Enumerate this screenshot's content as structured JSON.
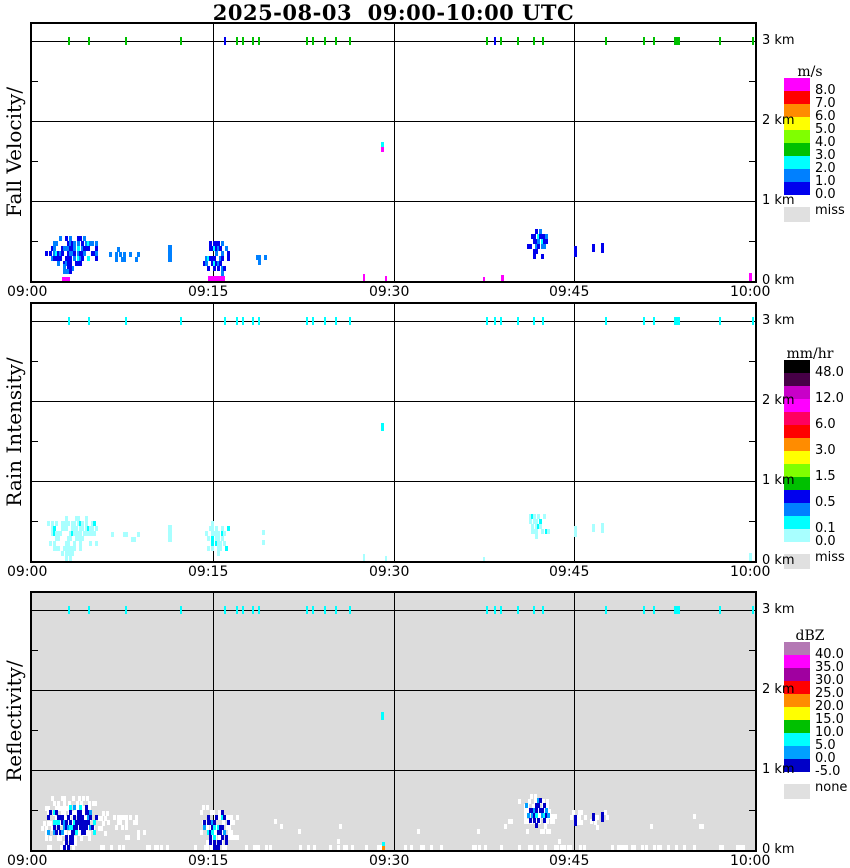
{
  "title": "2025-08-03  09:00-10:00 UTC",
  "chart_data": {
    "type": "heatmap",
    "title": "2025-08-03  09:00-10:00 UTC",
    "x_axis": {
      "tick_labels": [
        "09:00",
        "09:15",
        "09:30",
        "09:45",
        "10:00"
      ],
      "tick_minutes": [
        0,
        15,
        30,
        45,
        60
      ],
      "gridline_minutes": [
        15,
        30,
        45
      ],
      "range_minutes": [
        0,
        60
      ]
    },
    "y_axis": {
      "unit": "km",
      "tick_labels": [
        "0 km",
        "1 km",
        "2 km",
        "3 km"
      ],
      "tick_km": [
        0,
        1,
        2,
        3
      ],
      "gridline_km": [
        1,
        2,
        3
      ],
      "minor_tick_km": [
        0.5,
        1.5,
        2.5
      ],
      "range_km": [
        0,
        3.2
      ]
    },
    "shared_top_ticks": {
      "height_km": 3.0,
      "times_minutes": [
        3.1,
        4.7,
        7.8,
        12.4,
        16.0,
        17.0,
        17.5,
        18.3,
        18.8,
        22.8,
        23.3,
        24.3,
        25.2,
        26.4,
        37.8,
        38.4,
        38.9,
        40.3,
        41.7,
        42.4,
        47.6,
        50.8,
        51.6,
        53.5,
        57.1,
        59.8
      ],
      "wide_times": [
        53.5
      ]
    },
    "panels": [
      {
        "id": "fall-velocity",
        "label": "Fall Velocity/",
        "units": "m/s",
        "background": "#FFFFFF",
        "tick_color": "#00C000",
        "tick_overrides": [
          {
            "t": 16.0,
            "color": "#0000EE"
          },
          {
            "t": 38.4,
            "color": "#0000EE"
          }
        ],
        "features": [
          {
            "kind": "cluster",
            "t0": 1.2,
            "t1": 5.4,
            "h0": 0.13,
            "h1": 0.52,
            "density": 0.62,
            "seed": 11,
            "colors": [
              [
                "#0000EE",
                55
              ],
              [
                "#0080FF",
                38
              ],
              [
                "#00FFFF",
                7
              ]
            ]
          },
          {
            "kind": "cluster",
            "t0": 2.5,
            "t1": 3.4,
            "h0": 0.02,
            "h1": 0.16,
            "density": 0.7,
            "seed": 12,
            "colors": [
              [
                "#0000EE",
                60
              ],
              [
                "#0080FF",
                40
              ]
            ]
          },
          {
            "kind": "rect",
            "t0": 2.5,
            "t1": 3.2,
            "h0": 0.0,
            "h1": 0.05,
            "color": "#FF00FF"
          },
          {
            "kind": "cluster",
            "t0": 6.5,
            "t1": 9.0,
            "h0": 0.18,
            "h1": 0.38,
            "density": 0.16,
            "seed": 13,
            "colors": [
              [
                "#0080FF",
                100
              ]
            ]
          },
          {
            "kind": "rect",
            "t0": 11.3,
            "t1": 11.6,
            "h0": 0.24,
            "h1": 0.45,
            "color": "#0080FF"
          },
          {
            "kind": "cluster",
            "t0": 14.3,
            "t1": 16.4,
            "h0": 0.06,
            "h1": 0.46,
            "density": 0.6,
            "seed": 14,
            "colors": [
              [
                "#0000EE",
                55
              ],
              [
                "#0080FF",
                38
              ],
              [
                "#00FFFF",
                7
              ]
            ]
          },
          {
            "kind": "rect",
            "t0": 14.6,
            "t1": 16.0,
            "h0": 0.0,
            "h1": 0.06,
            "color": "#FF00FF"
          },
          {
            "kind": "cluster",
            "t0": 18.5,
            "t1": 19.6,
            "h0": 0.2,
            "h1": 0.33,
            "density": 0.22,
            "seed": 15,
            "colors": [
              [
                "#0080FF",
                100
              ]
            ]
          },
          {
            "kind": "rect",
            "t0": 29.0,
            "t1": 29.25,
            "h0": 1.68,
            "h1": 1.74,
            "color": "#00FFFF"
          },
          {
            "kind": "rect",
            "t0": 29.0,
            "t1": 29.25,
            "h0": 1.62,
            "h1": 1.68,
            "color": "#FF00FF"
          },
          {
            "kind": "rect",
            "t0": 27.5,
            "t1": 27.7,
            "h0": 0.0,
            "h1": 0.09,
            "color": "#FF00FF"
          },
          {
            "kind": "rect",
            "t0": 29.3,
            "t1": 29.5,
            "h0": 0.0,
            "h1": 0.06,
            "color": "#FF00FF"
          },
          {
            "kind": "rect",
            "t0": 37.4,
            "t1": 37.6,
            "h0": 0.0,
            "h1": 0.05,
            "color": "#FF00FF"
          },
          {
            "kind": "rect",
            "t0": 38.9,
            "t1": 39.15,
            "h0": 0.0,
            "h1": 0.07,
            "color": "#FF00FF"
          },
          {
            "kind": "rect",
            "t0": 59.5,
            "t1": 59.75,
            "h0": 0.0,
            "h1": 0.1,
            "color": "#FF00FF"
          },
          {
            "kind": "cluster",
            "t0": 41.0,
            "t1": 42.9,
            "h0": 0.28,
            "h1": 0.6,
            "density": 0.58,
            "seed": 16,
            "colors": [
              [
                "#0000EE",
                55
              ],
              [
                "#0080FF",
                40
              ],
              [
                "#00FFFF",
                5
              ]
            ]
          },
          {
            "kind": "rect",
            "t0": 45.0,
            "t1": 45.25,
            "h0": 0.3,
            "h1": 0.44,
            "color": "#0000EE"
          },
          {
            "kind": "rect",
            "t0": 46.5,
            "t1": 46.75,
            "h0": 0.36,
            "h1": 0.46,
            "color": "#0000EE"
          },
          {
            "kind": "rect",
            "t0": 47.2,
            "t1": 47.45,
            "h0": 0.34,
            "h1": 0.47,
            "color": "#0000EE"
          }
        ]
      },
      {
        "id": "rain-intensity",
        "label": "Rain Intensity/",
        "units": "mm/hr",
        "background": "#FFFFFF",
        "tick_color": "#00FFFF",
        "tick_overrides": [],
        "features": [
          {
            "kind": "cluster",
            "t0": 1.2,
            "t1": 5.4,
            "h0": 0.13,
            "h1": 0.52,
            "density": 0.62,
            "seed": 21,
            "colors": [
              [
                "#A8FFFF",
                88
              ],
              [
                "#00FFFF",
                12
              ]
            ]
          },
          {
            "kind": "cluster",
            "t0": 2.5,
            "t1": 3.4,
            "h0": 0.0,
            "h1": 0.16,
            "density": 0.7,
            "seed": 22,
            "colors": [
              [
                "#A8FFFF",
                100
              ]
            ]
          },
          {
            "kind": "cluster",
            "t0": 6.5,
            "t1": 9.0,
            "h0": 0.18,
            "h1": 0.38,
            "density": 0.16,
            "seed": 23,
            "colors": [
              [
                "#A8FFFF",
                100
              ]
            ]
          },
          {
            "kind": "rect",
            "t0": 11.3,
            "t1": 11.6,
            "h0": 0.24,
            "h1": 0.45,
            "color": "#A8FFFF"
          },
          {
            "kind": "cluster",
            "t0": 14.3,
            "t1": 16.4,
            "h0": 0.0,
            "h1": 0.46,
            "density": 0.6,
            "seed": 24,
            "colors": [
              [
                "#A8FFFF",
                90
              ],
              [
                "#00FFFF",
                10
              ]
            ]
          },
          {
            "kind": "cluster",
            "t0": 18.5,
            "t1": 19.6,
            "h0": 0.2,
            "h1": 0.33,
            "density": 0.22,
            "seed": 25,
            "colors": [
              [
                "#A8FFFF",
                100
              ]
            ]
          },
          {
            "kind": "rect",
            "t0": 29.0,
            "t1": 29.25,
            "h0": 1.62,
            "h1": 1.72,
            "color": "#00FFFF"
          },
          {
            "kind": "rect",
            "t0": 27.5,
            "t1": 27.7,
            "h0": 0.0,
            "h1": 0.09,
            "color": "#A8FFFF"
          },
          {
            "kind": "rect",
            "t0": 29.3,
            "t1": 29.5,
            "h0": 0.0,
            "h1": 0.06,
            "color": "#A8FFFF"
          },
          {
            "kind": "rect",
            "t0": 37.4,
            "t1": 37.6,
            "h0": 0.0,
            "h1": 0.05,
            "color": "#A8FFFF"
          },
          {
            "kind": "rect",
            "t0": 59.5,
            "t1": 59.75,
            "h0": 0.0,
            "h1": 0.1,
            "color": "#A8FFFF"
          },
          {
            "kind": "cluster",
            "t0": 41.0,
            "t1": 42.9,
            "h0": 0.28,
            "h1": 0.6,
            "density": 0.58,
            "seed": 26,
            "colors": [
              [
                "#A8FFFF",
                85
              ],
              [
                "#00FFFF",
                15
              ]
            ]
          },
          {
            "kind": "rect",
            "t0": 45.0,
            "t1": 45.25,
            "h0": 0.3,
            "h1": 0.44,
            "color": "#A8FFFF"
          },
          {
            "kind": "rect",
            "t0": 46.5,
            "t1": 46.75,
            "h0": 0.36,
            "h1": 0.46,
            "color": "#A8FFFF"
          },
          {
            "kind": "rect",
            "t0": 47.2,
            "t1": 47.45,
            "h0": 0.34,
            "h1": 0.47,
            "color": "#A8FFFF"
          }
        ]
      },
      {
        "id": "reflectivity",
        "label": "Reflectivity/",
        "units": "dBZ",
        "background": "#DCDCDC",
        "tick_color": "#00FFFF",
        "tick_overrides": [],
        "features": [
          {
            "kind": "cluster",
            "t0": 0.8,
            "t1": 6.3,
            "h0": 0.05,
            "h1": 0.62,
            "density": 0.5,
            "seed": 31,
            "colors": [
              [
                "#FFFFFF",
                100
              ]
            ]
          },
          {
            "kind": "cluster",
            "t0": 6.3,
            "t1": 9.6,
            "h0": 0.12,
            "h1": 0.42,
            "density": 0.3,
            "seed": 32,
            "colors": [
              [
                "#FFFFFF",
                100
              ]
            ]
          },
          {
            "kind": "cluster",
            "t0": 13.7,
            "t1": 17.2,
            "h0": 0.0,
            "h1": 0.52,
            "density": 0.45,
            "seed": 33,
            "colors": [
              [
                "#FFFFFF",
                100
              ]
            ]
          },
          {
            "kind": "cluster",
            "t0": 40.4,
            "t1": 43.4,
            "h0": 0.2,
            "h1": 0.66,
            "density": 0.45,
            "seed": 34,
            "colors": [
              [
                "#FFFFFF",
                100
              ]
            ]
          },
          {
            "kind": "cluster",
            "t0": 44.4,
            "t1": 48.0,
            "h0": 0.25,
            "h1": 0.5,
            "density": 0.25,
            "seed": 35,
            "colors": [
              [
                "#FFFFFF",
                100
              ]
            ]
          },
          {
            "kind": "cluster",
            "t0": 0.3,
            "t1": 59.7,
            "h0": 0.0,
            "h1": 0.05,
            "density": 0.5,
            "seed": 36,
            "colors": [
              [
                "#FFFFFF",
                100
              ]
            ]
          },
          {
            "kind": "cluster",
            "t0": 18.0,
            "t1": 60.0,
            "h0": 0.08,
            "h1": 0.4,
            "density": 0.012,
            "seed": 37,
            "colors": [
              [
                "#FFFFFF",
                100
              ]
            ]
          },
          {
            "kind": "cluster",
            "t0": 1.2,
            "t1": 5.4,
            "h0": 0.13,
            "h1": 0.52,
            "density": 0.6,
            "seed": 38,
            "colors": [
              [
                "#0000C8",
                66
              ],
              [
                "#00A0FF",
                18
              ],
              [
                "#00FFFF",
                16
              ]
            ]
          },
          {
            "kind": "cluster",
            "t0": 2.5,
            "t1": 3.4,
            "h0": 0.0,
            "h1": 0.16,
            "density": 0.65,
            "seed": 39,
            "colors": [
              [
                "#0000C8",
                100
              ]
            ]
          },
          {
            "kind": "cluster",
            "t0": 14.3,
            "t1": 16.4,
            "h0": 0.0,
            "h1": 0.46,
            "density": 0.55,
            "seed": 40,
            "colors": [
              [
                "#0000C8",
                75
              ],
              [
                "#00A0FF",
                15
              ],
              [
                "#00FFFF",
                10
              ]
            ]
          },
          {
            "kind": "rect",
            "t0": 29.05,
            "t1": 29.3,
            "h0": 0.05,
            "h1": 0.1,
            "color": "#00FFFF"
          },
          {
            "kind": "rect",
            "t0": 29.05,
            "t1": 29.3,
            "h0": 0.0,
            "h1": 0.05,
            "color": "#FF8C00"
          },
          {
            "kind": "rect",
            "t0": 29.0,
            "t1": 29.25,
            "h0": 1.62,
            "h1": 1.72,
            "color": "#00FFFF"
          },
          {
            "kind": "cluster",
            "t0": 41.0,
            "t1": 42.9,
            "h0": 0.28,
            "h1": 0.6,
            "density": 0.55,
            "seed": 41,
            "colors": [
              [
                "#0000C8",
                70
              ],
              [
                "#00A0FF",
                20
              ],
              [
                "#00FFFF",
                10
              ]
            ]
          },
          {
            "kind": "rect",
            "t0": 45.0,
            "t1": 45.25,
            "h0": 0.3,
            "h1": 0.44,
            "color": "#0000C8"
          },
          {
            "kind": "rect",
            "t0": 46.5,
            "t1": 46.75,
            "h0": 0.36,
            "h1": 0.46,
            "color": "#0000C8"
          },
          {
            "kind": "rect",
            "t0": 47.2,
            "t1": 47.45,
            "h0": 0.34,
            "h1": 0.47,
            "color": "#0000C8"
          }
        ]
      }
    ],
    "colorbars": [
      {
        "title": "m/s",
        "missing_label": "miss",
        "missing_color": "#E0E0E0",
        "segments": [
          {
            "color": "#FF00FF",
            "label": "8.0"
          },
          {
            "color": "#FF0000",
            "label": "7.0"
          },
          {
            "color": "#FF8C00",
            "label": "6.0"
          },
          {
            "color": "#FFFF00",
            "label": "5.0"
          },
          {
            "color": "#80FF00",
            "label": "4.0"
          },
          {
            "color": "#00C000",
            "label": "3.0"
          },
          {
            "color": "#00FFFF",
            "label": "2.0"
          },
          {
            "color": "#0080FF",
            "label": "1.0"
          },
          {
            "color": "#0000EE",
            "label": "0.0"
          }
        ]
      },
      {
        "title": "mm/hr",
        "missing_label": "miss",
        "missing_color": "#E0E0E0",
        "segments": [
          {
            "color": "#000000",
            "label": "48.0"
          },
          {
            "color": "#460046",
            "label": ""
          },
          {
            "color": "#C800C8",
            "label": "12.0"
          },
          {
            "color": "#FF00FF",
            "label": ""
          },
          {
            "color": "#FF0060",
            "label": "6.0"
          },
          {
            "color": "#FF0000",
            "label": ""
          },
          {
            "color": "#FF8C00",
            "label": "3.0"
          },
          {
            "color": "#FFFF00",
            "label": ""
          },
          {
            "color": "#80FF00",
            "label": "1.5"
          },
          {
            "color": "#00C000",
            "label": ""
          },
          {
            "color": "#0000EE",
            "label": "0.5"
          },
          {
            "color": "#0080FF",
            "label": ""
          },
          {
            "color": "#00FFFF",
            "label": "0.1"
          },
          {
            "color": "#A8FFFF",
            "label": "0.0"
          }
        ]
      },
      {
        "title": "dBZ",
        "missing_label": "none",
        "missing_color": "#E0E0E0",
        "segments": [
          {
            "color": "#B478B4",
            "label": "40.0"
          },
          {
            "color": "#FF00FF",
            "label": "35.0"
          },
          {
            "color": "#A000A0",
            "label": "30.0"
          },
          {
            "color": "#FF0000",
            "label": "25.0"
          },
          {
            "color": "#FF8C00",
            "label": "20.0"
          },
          {
            "color": "#FFFF00",
            "label": "15.0"
          },
          {
            "color": "#00C000",
            "label": "10.0"
          },
          {
            "color": "#00FFFF",
            "label": "5.0"
          },
          {
            "color": "#00A0FF",
            "label": "0.0"
          },
          {
            "color": "#0000C8",
            "label": "-5.0"
          }
        ]
      }
    ]
  }
}
